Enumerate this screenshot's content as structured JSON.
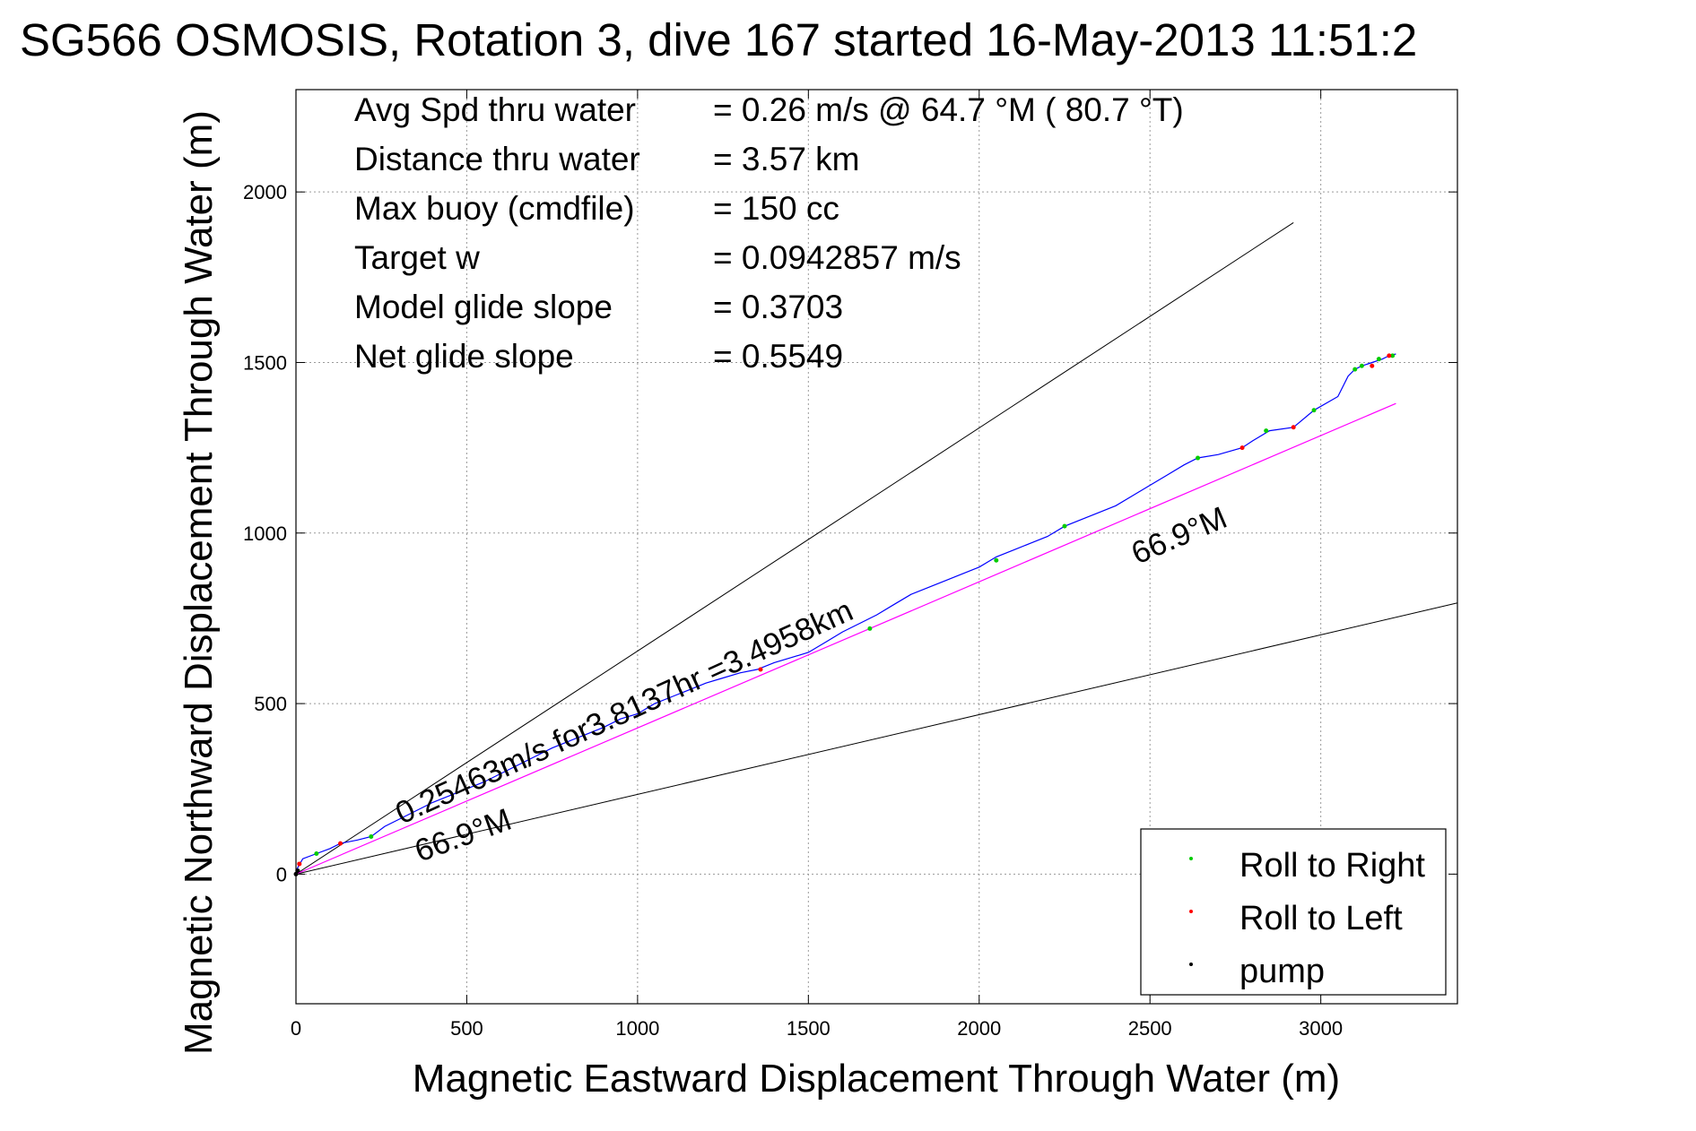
{
  "title": "SG566 OSMOSIS, Rotation 3, dive 167 started 16-May-2013 11:51:2",
  "chart_data": {
    "type": "line",
    "xlabel": "Magnetic Eastward Displacement Through Water (m)",
    "ylabel": "Magnetic Northward Displacement Through Water (m)",
    "xlim": [
      0,
      3400
    ],
    "ylim": [
      -380,
      2300
    ],
    "xticks": [
      0,
      500,
      1000,
      1500,
      2000,
      2500,
      3000
    ],
    "yticks": [
      0,
      500,
      1000,
      1500,
      2000
    ],
    "xtick_labels": [
      "0",
      "500",
      "1000",
      "1500",
      "2000",
      "2500",
      "3000"
    ],
    "ytick_labels": [
      "0",
      "500",
      "1000",
      "1500",
      "2000"
    ],
    "grid": true,
    "info": [
      {
        "label": "Avg Spd thru water",
        "value": "=  0.26 m/s @  64.7 °M ( 80.7 °T)"
      },
      {
        "label": "Distance thru water",
        "value": "=  3.57 km"
      },
      {
        "label": "Max buoy (cmdfile)",
        "value": "= 150 cc"
      },
      {
        "label": "Target w",
        "value": "= 0.0942857 m/s"
      },
      {
        "label": "Model glide slope",
        "value": "= 0.3703"
      },
      {
        "label": "Net glide slope",
        "value": "= 0.5549"
      }
    ],
    "track": {
      "color": "#0000ff",
      "x": [
        0,
        20,
        60,
        100,
        130,
        180,
        220,
        260,
        300,
        350,
        400,
        450,
        500,
        550,
        600,
        650,
        700,
        750,
        800,
        850,
        900,
        950,
        1000,
        1050,
        1100,
        1150,
        1200,
        1250,
        1300,
        1350,
        1400,
        1450,
        1500,
        1550,
        1600,
        1650,
        1700,
        1750,
        1800,
        1850,
        1900,
        1950,
        2000,
        2050,
        2100,
        2150,
        2200,
        2250,
        2300,
        2350,
        2400,
        2450,
        2500,
        2550,
        2600,
        2640,
        2700,
        2770,
        2800,
        2850,
        2920,
        2980,
        3050,
        3080,
        3100,
        3120,
        3150,
        3180,
        3200,
        3220
      ],
      "y": [
        10,
        45,
        60,
        75,
        90,
        100,
        110,
        140,
        160,
        185,
        210,
        230,
        250,
        270,
        295,
        320,
        345,
        370,
        390,
        410,
        430,
        455,
        470,
        500,
        520,
        540,
        560,
        575,
        590,
        600,
        620,
        635,
        650,
        680,
        710,
        735,
        760,
        790,
        820,
        840,
        860,
        880,
        900,
        930,
        950,
        970,
        990,
        1020,
        1040,
        1060,
        1080,
        1110,
        1140,
        1170,
        1200,
        1220,
        1230,
        1250,
        1270,
        1300,
        1310,
        1360,
        1400,
        1460,
        1480,
        1490,
        1500,
        1510,
        1520,
        1525
      ]
    },
    "net_line": {
      "color": "#ff00ff",
      "x": [
        0,
        3220
      ],
      "y": [
        0,
        1380
      ],
      "label": "0.25463m/s for3.8137hr =3.4958km"
    },
    "envelope_lines": [
      {
        "color": "#000000",
        "x": [
          0,
          2920
        ],
        "y": [
          0,
          1910
        ]
      },
      {
        "color": "#000000",
        "x": [
          0,
          3400
        ],
        "y": [
          0,
          795
        ]
      }
    ],
    "heading_labels": [
      "66.9°M",
      "66.9°M"
    ],
    "roll_right_points": {
      "color": "#00cc00",
      "x": [
        60,
        220,
        1680,
        2050,
        2250,
        2640,
        2840,
        2980,
        3100,
        3120,
        3170,
        3210
      ],
      "y": [
        60,
        110,
        720,
        920,
        1020,
        1220,
        1300,
        1360,
        1480,
        1490,
        1510,
        1520
      ]
    },
    "roll_left_points": {
      "color": "#ff0000",
      "x": [
        10,
        130,
        1360,
        2770,
        2920,
        3150,
        3200
      ],
      "y": [
        30,
        90,
        600,
        1250,
        1310,
        1490,
        1520
      ]
    },
    "pump_points": {
      "color": "#000000",
      "x": [
        0,
        5
      ],
      "y": [
        0,
        10
      ]
    },
    "legend": {
      "position": "bottom-right",
      "entries": [
        {
          "label": "Roll to Right",
          "color": "#00cc00"
        },
        {
          "label": "Roll to Left",
          "color": "#ff0000"
        },
        {
          "label": "pump",
          "color": "#000000"
        }
      ]
    }
  }
}
